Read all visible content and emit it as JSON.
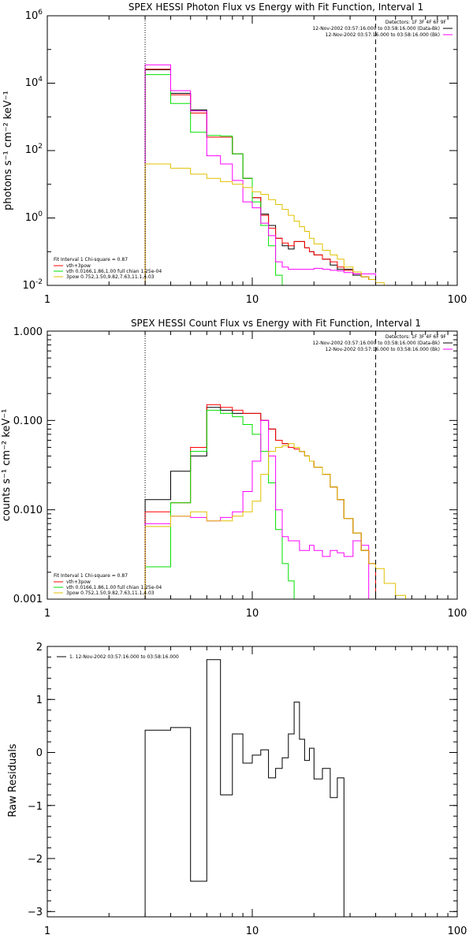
{
  "chart_data": [
    {
      "type": "line",
      "title": "SPEX HESSI Photon Flux vs Energy with Fit Function, Interval 1",
      "xlabel": "",
      "ylabel": "photons s⁻¹ cm⁻² keV⁻¹",
      "xscale": "log",
      "yscale": "log",
      "xlim": [
        1,
        100
      ],
      "ylim": [
        0.01,
        1000000
      ],
      "x_ticks": [
        {
          "v": 1,
          "label": "1"
        },
        {
          "v": 10,
          "label": "10"
        },
        {
          "v": 100,
          "label": "100"
        }
      ],
      "y_ticks": [
        {
          "v": 0.01,
          "base": "10",
          "exp": "-2"
        },
        {
          "v": 1,
          "base": "10",
          "exp": "0"
        },
        {
          "v": 100,
          "base": "10",
          "exp": "2"
        },
        {
          "v": 10000,
          "base": "10",
          "exp": "4"
        },
        {
          "v": 1000000,
          "base": "10",
          "exp": "6"
        }
      ],
      "vlines": [
        {
          "x": 3.0,
          "style": "dotted"
        },
        {
          "x": 40.0,
          "style": "dashed"
        }
      ],
      "info_lines": [
        "Detectors: 1F 3F 4F 6F 9F",
        "12-Nov-2002 03:57:16.000 to 03:58:16.000 (Data-Bk)",
        "12-Nov-2002 03:57:16.000 to 03:58:16.000 (Bk)"
      ],
      "fit_lines": [
        "Fit Interval 1   Chi-square = 0.87",
        "vth+3pow",
        "vth 0.0166,1.86,1.00  full chian 1.25e-04",
        "3pow 0.752,1.50,9.82,7.63,11.1,4.03"
      ],
      "edges": [
        3,
        4,
        5,
        6,
        7,
        8,
        9,
        10,
        11,
        12,
        13,
        14,
        15,
        16,
        17,
        18,
        19,
        20,
        22,
        24,
        26,
        28,
        31,
        34,
        37,
        40,
        44,
        50
      ],
      "series": [
        {
          "color": "#000000",
          "values": [
            25000,
            5000,
            1600,
            250,
            250,
            80,
            15,
            4,
            1.3,
            0.6,
            0.25,
            0.15,
            0.12,
            0.2,
            0.2,
            0.13,
            0.1,
            0.08,
            0.06,
            0.04,
            0.03,
            0.03,
            0.02,
            0.018,
            0.015,
            null,
            null
          ]
        },
        {
          "color": "#ff0000",
          "values": [
            26000,
            4500,
            1300,
            250,
            250,
            80,
            15,
            4,
            1.2,
            0.5,
            0.25,
            0.18,
            0.15,
            0.2,
            0.2,
            0.13,
            0.1,
            0.08,
            0.06,
            0.05,
            0.035,
            0.028,
            0.022,
            0.018,
            0.015,
            null,
            null
          ]
        },
        {
          "color": "#00e000",
          "values": [
            18000,
            2500,
            350,
            280,
            270,
            80,
            15,
            3,
            0.6,
            0.15,
            0.02,
            0.01,
            0.01,
            0.01,
            null,
            null,
            null,
            null,
            null,
            null,
            null,
            null,
            null,
            null,
            null,
            null,
            null
          ]
        },
        {
          "color": "#ff00ff",
          "values": [
            35000,
            6000,
            1500,
            70,
            40,
            13,
            3,
            2,
            0.7,
            0.3,
            0.05,
            0.035,
            0.03,
            0.03,
            0.03,
            0.03,
            0.03,
            0.032,
            0.03,
            0.028,
            0.027,
            0.024,
            0.022,
            0.022,
            0.022,
            null,
            null
          ]
        },
        {
          "color": "#e0c000",
          "values": [
            40,
            30,
            20,
            15,
            12,
            10,
            8,
            6,
            5,
            3.5,
            2.5,
            1.8,
            1.2,
            0.8,
            0.55,
            0.4,
            0.25,
            0.17,
            0.11,
            0.08,
            0.06,
            0.035,
            0.025,
            0.018,
            0.015,
            0.012,
            0.01
          ]
        }
      ]
    },
    {
      "type": "line",
      "title": "SPEX HESSI Count Flux vs Energy with Fit Function, Interval 1",
      "xlabel": "",
      "ylabel": "counts s⁻¹ cm⁻² keV⁻¹",
      "xscale": "log",
      "yscale": "log",
      "xlim": [
        1,
        100
      ],
      "ylim": [
        0.001,
        1.0
      ],
      "x_ticks": [
        {
          "v": 1,
          "label": "1"
        },
        {
          "v": 10,
          "label": "10"
        },
        {
          "v": 100,
          "label": "100"
        }
      ],
      "y_ticks": [
        {
          "v": 0.001,
          "label": "0.001"
        },
        {
          "v": 0.01,
          "label": "0.010"
        },
        {
          "v": 0.1,
          "label": "0.100"
        },
        {
          "v": 1.0,
          "label": "1.000"
        }
      ],
      "vlines": [
        {
          "x": 3.0,
          "style": "dotted"
        },
        {
          "x": 40.0,
          "style": "dashed"
        }
      ],
      "info_lines": [
        "Detectors: 1F 3F 4F 6F 9F",
        "12-Nov-2002 03:57:16.000 to 03:58:16.000 (Data-Bk)",
        "12-Nov-2002 03:57:16.000 to 03:58:16.000 (Bk)"
      ],
      "fit_lines": [
        "Fit Interval 1   Chi-square = 0.87",
        "vth+3pow",
        "vth 0.0166,1.86,1.00  full chian 1.25e-04",
        "3pow 0.752,1.50,9.82,7.63,11.1,4.03"
      ],
      "edges": [
        3,
        4,
        5,
        6,
        7,
        8,
        9,
        10,
        11,
        12,
        13,
        14,
        15,
        16,
        17,
        18,
        19,
        20,
        22,
        24,
        26,
        28,
        31,
        34,
        37,
        40,
        44,
        50,
        56
      ],
      "series": [
        {
          "color": "#000000",
          "values": [
            0.013,
            0.027,
            0.04,
            0.14,
            0.13,
            0.12,
            0.12,
            0.12,
            0.1,
            0.08,
            0.06,
            0.055,
            0.05,
            0.048,
            0.045,
            0.04,
            0.035,
            0.03,
            0.025,
            0.018,
            0.013,
            0.008,
            0.0055,
            0.0035,
            0.0025,
            null,
            null,
            null
          ]
        },
        {
          "color": "#ff0000",
          "values": [
            0.0095,
            0.012,
            0.05,
            0.15,
            0.14,
            0.13,
            0.12,
            0.12,
            0.1,
            0.08,
            0.06,
            0.055,
            0.05,
            0.048,
            0.045,
            0.04,
            0.035,
            0.03,
            0.025,
            0.018,
            0.013,
            0.008,
            0.0055,
            0.0035,
            0.0025,
            null,
            null,
            null
          ]
        },
        {
          "color": "#00e000",
          "values": [
            0.0023,
            0.012,
            0.045,
            0.13,
            0.12,
            0.11,
            0.09,
            0.07,
            0.045,
            0.02,
            0.006,
            0.0025,
            0.0016,
            0.001,
            null,
            null,
            null,
            null,
            null,
            null,
            null,
            null,
            null,
            null,
            null,
            null,
            null,
            null
          ]
        },
        {
          "color": "#ff00ff",
          "values": [
            0.007,
            0.0085,
            0.0082,
            0.0075,
            0.0082,
            0.0095,
            0.016,
            0.035,
            0.1,
            0.04,
            0.01,
            0.005,
            0.0045,
            0.0045,
            0.0035,
            0.0035,
            0.004,
            0.0035,
            0.003,
            0.0035,
            0.0033,
            0.003,
            0.0045,
            0.004,
            0.001,
            null,
            null,
            null
          ]
        },
        {
          "color": "#e0c000",
          "values": [
            0.0065,
            0.0085,
            0.0095,
            0.0075,
            0.0075,
            0.0085,
            0.0095,
            0.0125,
            0.025,
            0.045,
            0.05,
            0.052,
            0.055,
            0.05,
            0.045,
            0.04,
            0.035,
            0.03,
            0.025,
            0.018,
            0.013,
            0.008,
            0.0055,
            0.0035,
            0.0025,
            0.0022,
            0.0015,
            0.0011
          ]
        }
      ]
    },
    {
      "type": "line",
      "title": "",
      "xlabel": "",
      "ylabel": "Raw Residuals",
      "xscale": "log",
      "yscale": "linear",
      "xlim": [
        1,
        100
      ],
      "ylim": [
        -3.1,
        2.0
      ],
      "x_ticks": [
        {
          "v": 1,
          "label": "1"
        },
        {
          "v": 10,
          "label": "10"
        },
        {
          "v": 100,
          "label": "100"
        }
      ],
      "y_ticks": [
        {
          "v": -3,
          "label": "−3"
        },
        {
          "v": -2,
          "label": "−2"
        },
        {
          "v": -1,
          "label": "−1"
        },
        {
          "v": 0,
          "label": "0"
        },
        {
          "v": 1,
          "label": "1"
        },
        {
          "v": 2,
          "label": "2"
        }
      ],
      "legend": "1. 12-Nov-2002 03:57:16.000 to 03:58:16.000",
      "edges": [
        3,
        4,
        5,
        6,
        7,
        8,
        9,
        10,
        11,
        12,
        13,
        14,
        15,
        16,
        17,
        18,
        19,
        20,
        22,
        24,
        26,
        28,
        31,
        34,
        37,
        40
      ],
      "series": [
        {
          "color": "#000000",
          "values": [
            0.42,
            0.47,
            -2.43,
            1.75,
            -0.8,
            0.35,
            -0.2,
            -0.05,
            0.05,
            -0.48,
            -0.3,
            -0.1,
            0.35,
            0.95,
            0.25,
            -0.15,
            0.08,
            -0.5,
            -0.3,
            -0.85,
            -0.48
          ]
        }
      ]
    }
  ]
}
